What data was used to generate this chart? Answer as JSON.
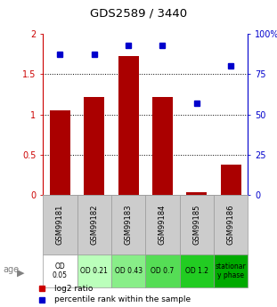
{
  "title": "GDS2589 / 3440",
  "samples": [
    "GSM99181",
    "GSM99182",
    "GSM99183",
    "GSM99184",
    "GSM99185",
    "GSM99186"
  ],
  "log2_ratio": [
    1.05,
    1.22,
    1.72,
    1.22,
    0.03,
    0.38
  ],
  "percentile_rank": [
    87,
    87,
    93,
    93,
    57,
    80
  ],
  "bar_color": "#aa0000",
  "dot_color": "#0000cc",
  "ylim_left": [
    0,
    2
  ],
  "ylim_right": [
    0,
    100
  ],
  "yticks_left": [
    0,
    0.5,
    1.0,
    1.5,
    2.0
  ],
  "yticks_right": [
    0,
    25,
    50,
    75,
    100
  ],
  "ytick_labels_left": [
    "0",
    "0.5",
    "1",
    "1.5",
    "2"
  ],
  "ytick_labels_right": [
    "0",
    "25",
    "50",
    "75",
    "100%"
  ],
  "hlines": [
    0.5,
    1.0,
    1.5
  ],
  "condition_labels": [
    "OD\n0.05",
    "OD 0.21",
    "OD 0.43",
    "OD 0.7",
    "OD 1.2",
    "stationar\ny phase"
  ],
  "condition_colors": [
    "#ffffff",
    "#bbffbb",
    "#88ee88",
    "#55dd55",
    "#22cc22",
    "#00aa00"
  ],
  "age_label": "age",
  "legend_items": [
    {
      "color": "#cc0000",
      "label": "log2 ratio"
    },
    {
      "color": "#0000cc",
      "label": "percentile rank within the sample"
    }
  ],
  "left_axis_color": "#cc0000",
  "right_axis_color": "#0000cc",
  "sample_box_color": "#cccccc",
  "bar_width": 0.6
}
